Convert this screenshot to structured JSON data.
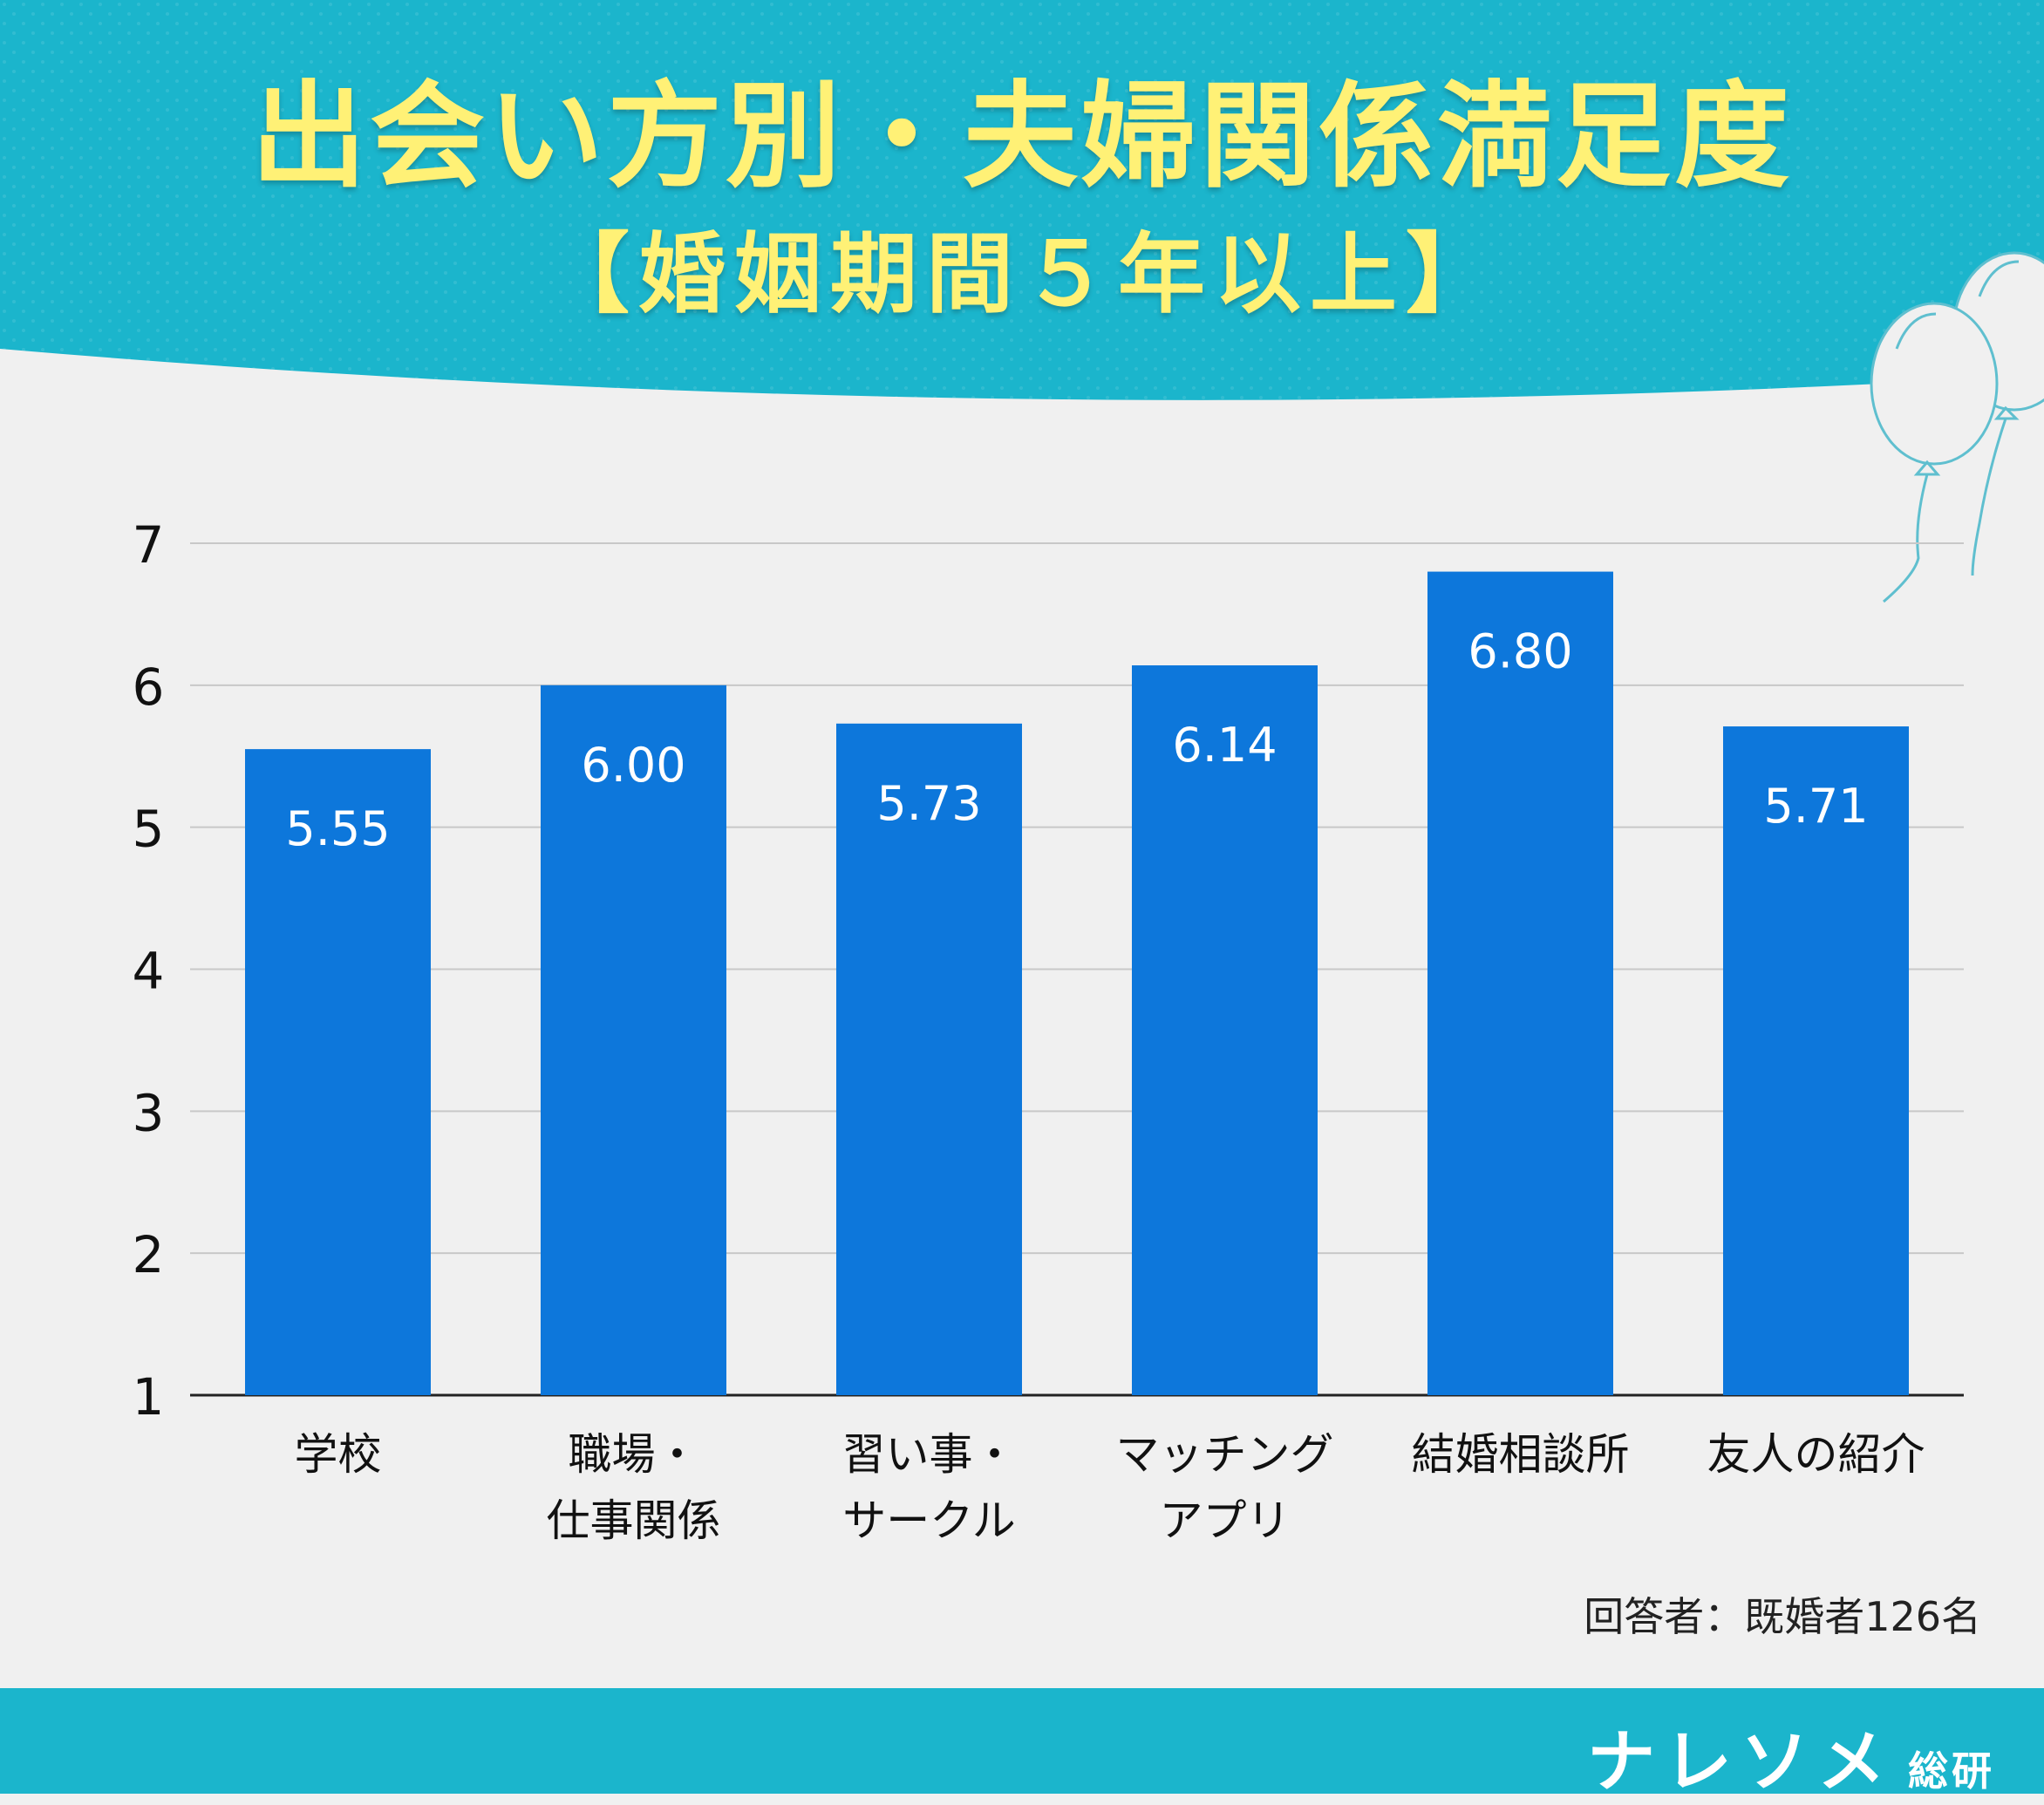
{
  "header": {
    "title": "出会い方別・夫婦関係満足度",
    "subtitle": "【婚姻期間５年以上】"
  },
  "colors": {
    "header_bg": "#1bb5cc",
    "title_text": "#fff176",
    "bar": "#0d77db",
    "background": "#f0f0f0"
  },
  "chart_data": {
    "type": "bar",
    "categories": [
      [
        "学校"
      ],
      [
        "職場・",
        "仕事関係"
      ],
      [
        "習い事・",
        "サークル"
      ],
      [
        "マッチング",
        "アプリ"
      ],
      [
        "結婚相談所"
      ],
      [
        "友人の紹介"
      ]
    ],
    "values": [
      5.55,
      6.0,
      5.73,
      6.14,
      6.8,
      5.71
    ],
    "value_labels": [
      "5.55",
      "6.00",
      "5.73",
      "6.14",
      "6.80",
      "5.71"
    ],
    "y_ticks": [
      "1",
      "2",
      "3",
      "4",
      "5",
      "6",
      "7"
    ],
    "ylim": [
      1,
      7
    ],
    "grid": true,
    "legend": "none"
  },
  "note": "回答者：既婚者126名",
  "brand": {
    "name": "ナレソメ",
    "suffix": "総研"
  },
  "decoration": {
    "icon": "balloons-icon"
  }
}
